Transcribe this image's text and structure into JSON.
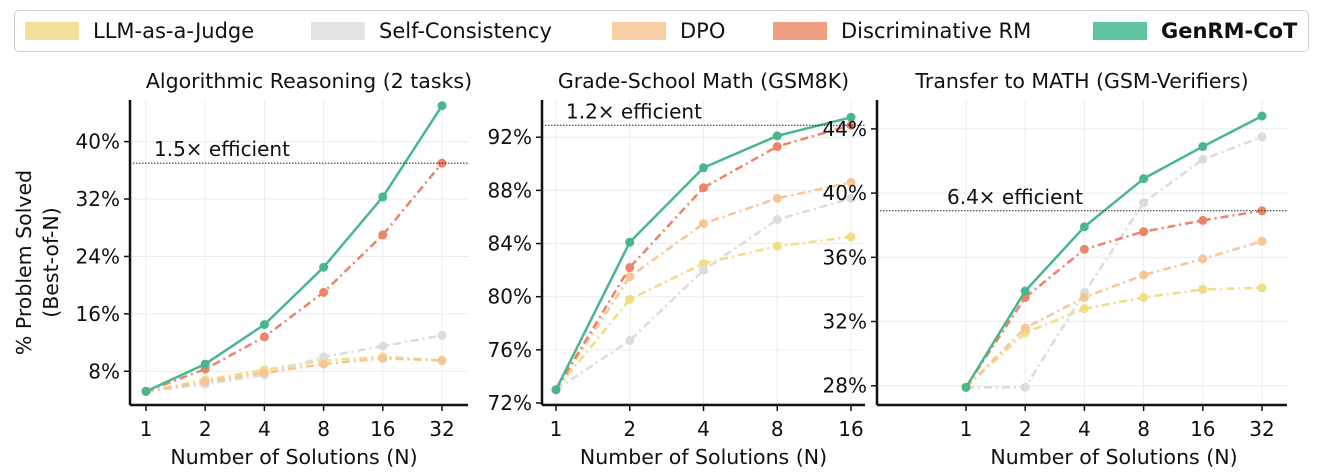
{
  "legend": [
    {
      "label": "LLM-as-a-Judge",
      "color": "#f3e09a",
      "bold": false
    },
    {
      "label": "Self-Consistency",
      "color": "#e3e3e3",
      "bold": false
    },
    {
      "label": "DPO",
      "color": "#f9cfa6",
      "bold": false
    },
    {
      "label": "Discriminative RM",
      "color": "#ef9f82",
      "bold": false
    },
    {
      "label": "GenRM-CoT",
      "color": "#5ec4a2",
      "bold": true
    }
  ],
  "chart_data": [
    {
      "type": "line",
      "title": "Algorithmic Reasoning (2 tasks)",
      "xlabel": "Number of Solutions (N)",
      "ylabel": [
        "% Problem Solved",
        "(Best-of-N)"
      ],
      "x": [
        "1",
        "2",
        "4",
        "8",
        "16",
        "32"
      ],
      "yticks": [
        "8%",
        "16%",
        "24%",
        "32%",
        "40%"
      ],
      "ytick_values": [
        8,
        16,
        24,
        32,
        40
      ],
      "ylim": [
        3.3,
        45.8
      ],
      "annotation": {
        "text": "1.5× efficient",
        "y": 37
      },
      "series": [
        {
          "name": "LLM-as-a-Judge",
          "color": "#f2dc84",
          "dash": "8,4,2,4",
          "values": [
            5.2,
            6.8,
            8.2,
            9.5,
            10.0,
            9.5
          ]
        },
        {
          "name": "Self-Consistency",
          "color": "#dcdcdc",
          "dash": "8,4,2,4",
          "values": [
            5.2,
            6.2,
            7.5,
            10.0,
            11.5,
            13.0
          ]
        },
        {
          "name": "DPO",
          "color": "#f7c694",
          "dash": "8,4,2,4",
          "values": [
            5.2,
            6.5,
            7.8,
            9.0,
            9.8,
            9.5
          ]
        },
        {
          "name": "Discriminative RM",
          "color": "#ec8467",
          "dash": "8,4,2,4",
          "values": [
            5.2,
            8.3,
            12.8,
            19.0,
            27.0,
            37.0
          ]
        },
        {
          "name": "GenRM-CoT",
          "color": "#49b68f",
          "dash": "",
          "values": [
            5.2,
            9.0,
            14.5,
            22.5,
            32.3,
            45.0
          ]
        }
      ]
    },
    {
      "type": "line",
      "title": "Grade-School Math (GSM8K)",
      "xlabel": "Number of Solutions (N)",
      "ylabel": [],
      "x": [
        "1",
        "2",
        "4",
        "8",
        "16"
      ],
      "yticks": [
        "72%",
        "76%",
        "80%",
        "84%",
        "88%",
        "92%"
      ],
      "ytick_values": [
        72,
        76,
        80,
        84,
        88,
        92
      ],
      "ylim": [
        71.85,
        94.8
      ],
      "annotation": {
        "text": "1.2× efficient",
        "y": 92.9
      },
      "series": [
        {
          "name": "LLM-as-a-Judge",
          "color": "#f2dc84",
          "dash": "8,4,2,4",
          "values": [
            73.0,
            79.8,
            82.5,
            83.8,
            84.5
          ]
        },
        {
          "name": "Self-Consistency",
          "color": "#dcdcdc",
          "dash": "8,4,2,4",
          "values": [
            73.0,
            76.7,
            82.0,
            85.8,
            87.4
          ]
        },
        {
          "name": "DPO",
          "color": "#f7c694",
          "dash": "8,4,2,4",
          "values": [
            73.0,
            81.5,
            85.5,
            87.4,
            88.6
          ]
        },
        {
          "name": "Discriminative RM",
          "color": "#ec8467",
          "dash": "8,4,2,4",
          "values": [
            73.0,
            82.2,
            88.2,
            91.3,
            92.9
          ]
        },
        {
          "name": "GenRM-CoT",
          "color": "#49b68f",
          "dash": "",
          "values": [
            73.0,
            84.1,
            89.7,
            92.1,
            93.5
          ]
        }
      ]
    },
    {
      "type": "line",
      "title": "Transfer to MATH (GSM-Verifiers)",
      "xlabel": "Number of Solutions (N)",
      "ylabel": [],
      "x": [
        "1",
        "2",
        "4",
        "8",
        "16",
        "32"
      ],
      "yticks": [
        "28%",
        "32%",
        "36%",
        "40%",
        "44%"
      ],
      "ytick_values": [
        28,
        32,
        36,
        40,
        44
      ],
      "ylim": [
        26.8,
        45.8
      ],
      "annotation": {
        "text": "6.4× efficient",
        "y": 38.9
      },
      "series": [
        {
          "name": "LLM-as-a-Judge",
          "color": "#f2dc84",
          "dash": "8,4,2,4",
          "values": [
            27.9,
            31.3,
            32.8,
            33.5,
            34.0,
            34.1
          ]
        },
        {
          "name": "Self-Consistency",
          "color": "#dcdcdc",
          "dash": "8,4,2,4",
          "values": [
            27.9,
            27.9,
            33.8,
            39.4,
            42.1,
            43.5
          ]
        },
        {
          "name": "DPO",
          "color": "#f7c694",
          "dash": "8,4,2,4",
          "values": [
            27.9,
            31.6,
            33.5,
            34.9,
            35.9,
            37.0
          ]
        },
        {
          "name": "Discriminative RM",
          "color": "#ec8467",
          "dash": "8,4,2,4",
          "values": [
            27.9,
            33.5,
            36.5,
            37.6,
            38.3,
            38.9
          ]
        },
        {
          "name": "GenRM-CoT",
          "color": "#49b68f",
          "dash": "",
          "values": [
            27.9,
            33.9,
            37.9,
            40.9,
            42.9,
            44.8
          ]
        }
      ]
    }
  ]
}
